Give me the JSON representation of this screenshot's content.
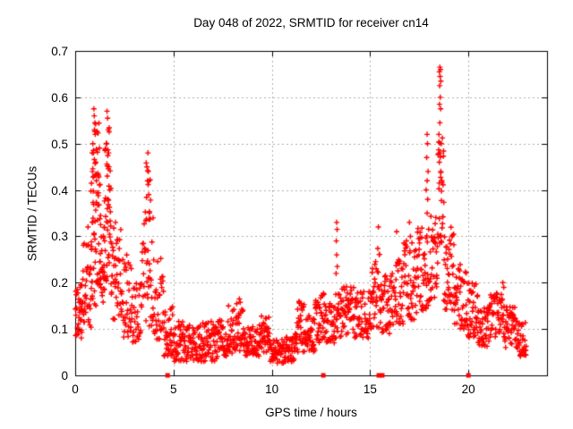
{
  "chart_data": {
    "type": "scatter",
    "title": "Day 048 of 2022, SRMTID for receiver cn14",
    "xlabel": "GPS time / hours",
    "ylabel": "SRMTID / TECUs",
    "xlim": [
      0,
      24
    ],
    "ylim": [
      0,
      0.7
    ],
    "xticks": [
      0,
      5,
      10,
      15,
      20
    ],
    "xtick_labels": [
      "0",
      "5",
      "10",
      "15",
      "20"
    ],
    "yticks": [
      0,
      0.1,
      0.2,
      0.3,
      0.4,
      0.5,
      0.6,
      0.7
    ],
    "ytick_labels": [
      "0",
      "0.1",
      "0.2",
      "0.3",
      "0.4",
      "0.5",
      "0.6",
      "0.7"
    ],
    "grid": true,
    "legend": "none",
    "seed": 48,
    "colors": {
      "marker": "#ff0000",
      "grid": "#b0b0b0",
      "axis": "#000000",
      "background": "#ffffff",
      "text": "#000000"
    },
    "series": [
      {
        "name": "srmtid",
        "marker": "plus",
        "color": "#ff0000",
        "bands": [
          [
            0.0,
            0.35,
            30,
            0.08,
            0.21
          ],
          [
            0.3,
            0.85,
            45,
            0.1,
            0.3
          ],
          [
            0.8,
            1.3,
            50,
            0.15,
            0.44
          ],
          [
            0.85,
            1.25,
            18,
            0.42,
            0.56
          ],
          [
            1.25,
            1.5,
            22,
            0.15,
            0.35
          ],
          [
            1.45,
            1.85,
            35,
            0.17,
            0.42
          ],
          [
            1.5,
            1.82,
            14,
            0.4,
            0.56
          ],
          [
            1.85,
            2.35,
            40,
            0.12,
            0.32
          ],
          [
            2.35,
            2.9,
            38,
            0.08,
            0.26
          ],
          [
            2.9,
            3.4,
            32,
            0.06,
            0.2
          ],
          [
            3.4,
            4.0,
            42,
            0.1,
            0.36
          ],
          [
            3.6,
            3.85,
            10,
            0.34,
            0.46
          ],
          [
            4.0,
            4.5,
            34,
            0.07,
            0.27
          ],
          [
            4.5,
            5.0,
            38,
            0.04,
            0.15
          ],
          [
            5.0,
            5.6,
            44,
            0.03,
            0.12
          ],
          [
            5.6,
            6.4,
            58,
            0.03,
            0.11
          ],
          [
            6.4,
            7.2,
            58,
            0.03,
            0.12
          ],
          [
            7.2,
            8.0,
            58,
            0.04,
            0.13
          ],
          [
            8.0,
            8.6,
            44,
            0.05,
            0.16
          ],
          [
            8.6,
            9.4,
            56,
            0.04,
            0.11
          ],
          [
            9.4,
            9.9,
            38,
            0.05,
            0.13
          ],
          [
            9.9,
            10.7,
            58,
            0.025,
            0.08
          ],
          [
            10.7,
            11.2,
            38,
            0.03,
            0.09
          ],
          [
            11.2,
            11.7,
            38,
            0.05,
            0.16
          ],
          [
            11.7,
            12.2,
            38,
            0.05,
            0.13
          ],
          [
            12.2,
            12.7,
            38,
            0.07,
            0.18
          ],
          [
            12.7,
            13.2,
            38,
            0.07,
            0.16
          ],
          [
            13.2,
            14.2,
            68,
            0.08,
            0.2
          ],
          [
            14.2,
            15.1,
            62,
            0.08,
            0.19
          ],
          [
            15.1,
            15.55,
            34,
            0.1,
            0.28
          ],
          [
            15.55,
            16.1,
            40,
            0.09,
            0.22
          ],
          [
            16.1,
            16.7,
            44,
            0.11,
            0.25
          ],
          [
            16.7,
            17.4,
            50,
            0.12,
            0.3
          ],
          [
            17.4,
            18.0,
            46,
            0.14,
            0.32
          ],
          [
            18.0,
            18.45,
            36,
            0.16,
            0.35
          ],
          [
            18.45,
            18.75,
            30,
            0.28,
            0.52
          ],
          [
            18.75,
            19.3,
            44,
            0.14,
            0.32
          ],
          [
            19.3,
            19.9,
            44,
            0.1,
            0.24
          ],
          [
            19.9,
            20.5,
            44,
            0.08,
            0.2
          ],
          [
            20.5,
            21.1,
            44,
            0.06,
            0.16
          ],
          [
            21.1,
            21.8,
            48,
            0.08,
            0.18
          ],
          [
            21.8,
            22.4,
            44,
            0.06,
            0.15
          ],
          [
            22.4,
            22.95,
            38,
            0.04,
            0.12
          ]
        ],
        "peak_points": [
          [
            0.95,
            0.575
          ],
          [
            0.97,
            0.56
          ],
          [
            1.0,
            0.545
          ],
          [
            1.02,
            0.52
          ],
          [
            0.9,
            0.5
          ],
          [
            0.93,
            0.48
          ],
          [
            1.05,
            0.46
          ],
          [
            0.88,
            0.44
          ],
          [
            1.08,
            0.42
          ],
          [
            0.98,
            0.53
          ],
          [
            1.62,
            0.57
          ],
          [
            1.65,
            0.555
          ],
          [
            1.68,
            0.53
          ],
          [
            1.6,
            0.5
          ],
          [
            1.7,
            0.48
          ],
          [
            1.72,
            0.45
          ],
          [
            1.63,
            0.43
          ],
          [
            3.7,
            0.48
          ],
          [
            3.72,
            0.44
          ],
          [
            3.68,
            0.42
          ],
          [
            3.74,
            0.39
          ],
          [
            0.65,
            0.32
          ],
          [
            2.05,
            0.33
          ],
          [
            7.8,
            0.15
          ],
          [
            8.35,
            0.165
          ],
          [
            11.5,
            0.155
          ],
          [
            13.3,
            0.33
          ],
          [
            13.32,
            0.315
          ],
          [
            13.28,
            0.29
          ],
          [
            13.3,
            0.26
          ],
          [
            13.33,
            0.235
          ],
          [
            13.27,
            0.22
          ],
          [
            15.42,
            0.32
          ],
          [
            16.35,
            0.31
          ],
          [
            17.0,
            0.33
          ],
          [
            17.05,
            0.3
          ],
          [
            17.9,
            0.52
          ],
          [
            17.92,
            0.5
          ],
          [
            17.88,
            0.47
          ],
          [
            17.95,
            0.44
          ],
          [
            17.9,
            0.42
          ],
          [
            17.85,
            0.4
          ],
          [
            17.93,
            0.38
          ],
          [
            17.9,
            0.35
          ],
          [
            18.55,
            0.665
          ],
          [
            18.58,
            0.66
          ],
          [
            18.52,
            0.655
          ],
          [
            18.56,
            0.645
          ],
          [
            18.6,
            0.635
          ],
          [
            18.54,
            0.625
          ],
          [
            18.57,
            0.6
          ],
          [
            18.53,
            0.585
          ],
          [
            18.59,
            0.575
          ],
          [
            18.55,
            0.545
          ],
          [
            18.5,
            0.52
          ],
          [
            18.62,
            0.5
          ],
          [
            18.56,
            0.48
          ],
          [
            18.52,
            0.46
          ],
          [
            18.6,
            0.44
          ],
          [
            18.65,
            0.42
          ],
          [
            21.75,
            0.2
          ],
          [
            21.8,
            0.19
          ]
        ]
      },
      {
        "name": "axis-events",
        "marker": "square",
        "color": "#ff0000",
        "points": [
          [
            4.7,
            0
          ],
          [
            12.62,
            0
          ],
          [
            15.44,
            0
          ],
          [
            15.62,
            0
          ],
          [
            20.0,
            0
          ]
        ]
      }
    ]
  }
}
